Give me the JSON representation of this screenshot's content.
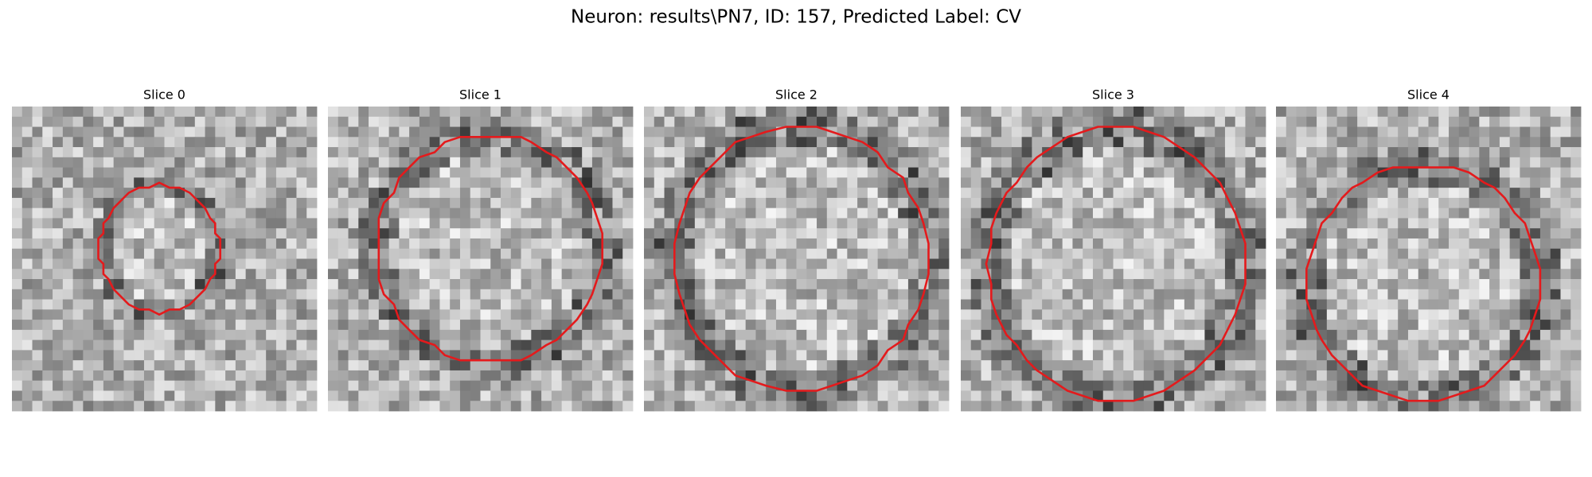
{
  "header": {
    "title": "Neuron: results\\PN7, ID: 157, Predicted Label: CV"
  },
  "panels": [
    {
      "title": "Slice 0"
    },
    {
      "title": "Slice 1"
    },
    {
      "title": "Slice 2"
    },
    {
      "title": "Slice 3"
    },
    {
      "title": "Slice 4"
    }
  ]
}
